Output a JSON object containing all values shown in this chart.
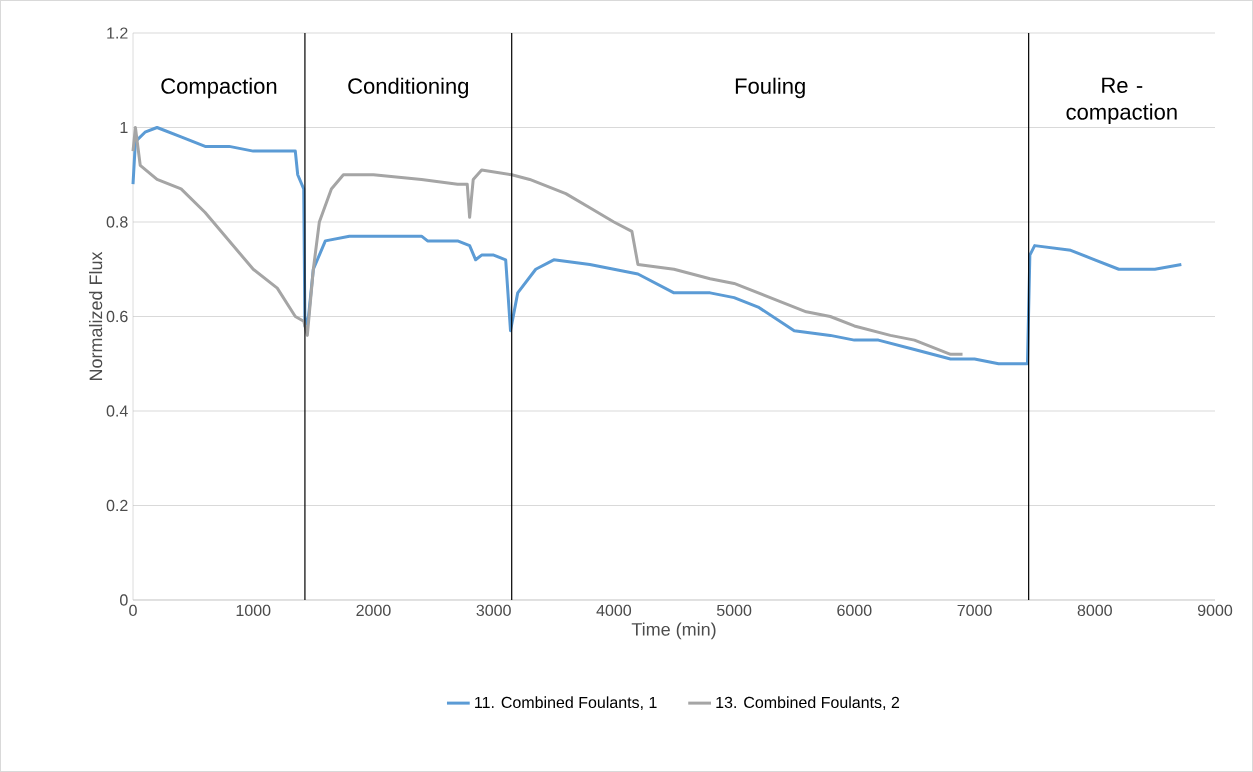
{
  "chart_data": {
    "type": "line",
    "xlabel": "Time (min)",
    "ylabel": "Normalized Flux",
    "xlim": [
      0,
      9000
    ],
    "xticks": [
      0,
      1000,
      2000,
      3000,
      4000,
      5000,
      6000,
      7000,
      8000,
      9000
    ],
    "ylim": [
      0,
      1.2
    ],
    "yticks": [
      0,
      0.2,
      0.4,
      0.6,
      0.8,
      1,
      1.2
    ],
    "grid": "y",
    "legend": "bottom",
    "line_style": "solid",
    "marker": "none",
    "ref_lines": [
      {
        "axis": "x",
        "value": 1430,
        "color": "#000000"
      },
      {
        "axis": "x",
        "value": 3150,
        "color": "#000000"
      },
      {
        "axis": "x",
        "value": 7450,
        "color": "#000000"
      }
    ],
    "annotations": [
      "Compaction",
      "Conditioning",
      "Fouling",
      "Re - compaction"
    ],
    "series": [
      {
        "name": "11. Combined Foulants, 1",
        "color": "#5b9bd5",
        "x": [
          0,
          20,
          100,
          200,
          400,
          600,
          800,
          1000,
          1200,
          1350,
          1370,
          1420,
          1430,
          1460,
          1500,
          1600,
          1800,
          2200,
          2400,
          2450,
          2700,
          2800,
          2850,
          2900,
          3000,
          3100,
          3140,
          3200,
          3350,
          3500,
          3800,
          4000,
          4200,
          4500,
          4800,
          5000,
          5200,
          5500,
          5800,
          6000,
          6200,
          6500,
          6800,
          7000,
          7200,
          7440,
          7460,
          7500,
          7800,
          8000,
          8200,
          8500,
          8720
        ],
        "values": [
          0.88,
          0.97,
          0.99,
          1.0,
          0.98,
          0.96,
          0.96,
          0.95,
          0.95,
          0.95,
          0.9,
          0.87,
          0.58,
          0.6,
          0.7,
          0.76,
          0.77,
          0.77,
          0.77,
          0.76,
          0.76,
          0.75,
          0.72,
          0.73,
          0.73,
          0.72,
          0.57,
          0.65,
          0.7,
          0.72,
          0.71,
          0.7,
          0.69,
          0.65,
          0.65,
          0.64,
          0.62,
          0.57,
          0.56,
          0.55,
          0.55,
          0.53,
          0.51,
          0.51,
          0.5,
          0.5,
          0.73,
          0.75,
          0.74,
          0.72,
          0.7,
          0.7,
          0.71
        ]
      },
      {
        "name": "13. Combined Foulants, 2",
        "color": "#a5a5a5",
        "x": [
          0,
          20,
          60,
          200,
          400,
          600,
          800,
          1000,
          1200,
          1350,
          1420,
          1450,
          1500,
          1550,
          1650,
          1750,
          2000,
          2400,
          2700,
          2780,
          2800,
          2830,
          2900,
          3150,
          3300,
          3600,
          3800,
          4000,
          4150,
          4200,
          4500,
          4800,
          5000,
          5300,
          5600,
          5800,
          6000,
          6300,
          6500,
          6800,
          6900
        ],
        "values": [
          0.95,
          1.0,
          0.92,
          0.89,
          0.87,
          0.82,
          0.76,
          0.7,
          0.66,
          0.6,
          0.59,
          0.56,
          0.7,
          0.8,
          0.87,
          0.9,
          0.9,
          0.89,
          0.88,
          0.88,
          0.81,
          0.89,
          0.91,
          0.9,
          0.89,
          0.86,
          0.83,
          0.8,
          0.78,
          0.71,
          0.7,
          0.68,
          0.67,
          0.64,
          0.61,
          0.6,
          0.58,
          0.56,
          0.55,
          0.52,
          0.52
        ]
      }
    ]
  }
}
